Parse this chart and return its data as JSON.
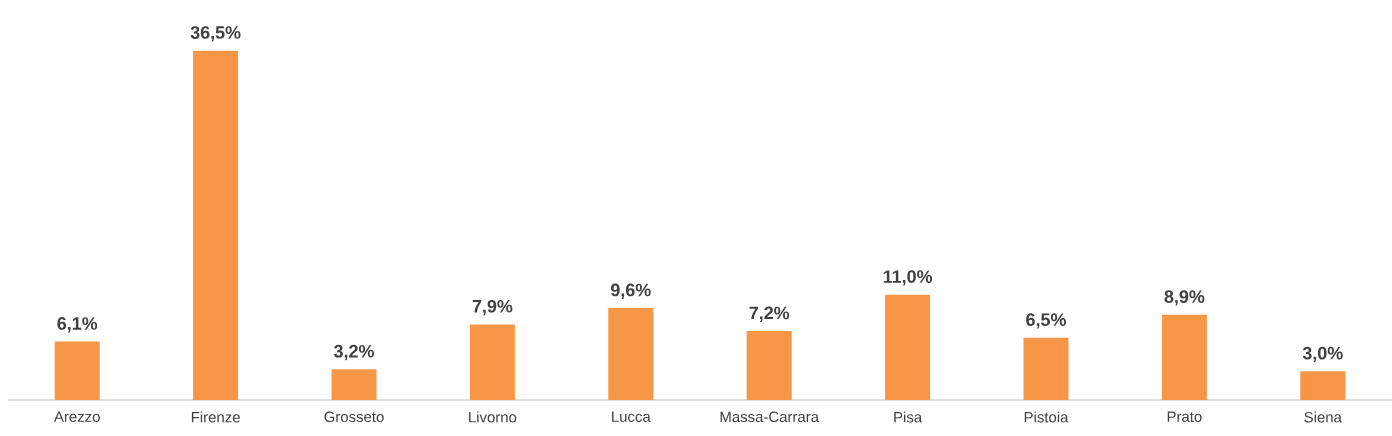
{
  "chart_data": {
    "type": "bar",
    "categories": [
      "Arezzo",
      "Firenze",
      "Grosseto",
      "Livorno",
      "Lucca",
      "Massa-Carrara",
      "Pisa",
      "Pistoia",
      "Prato",
      "Siena"
    ],
    "values": [
      6.1,
      36.5,
      3.2,
      7.9,
      9.6,
      7.2,
      11.0,
      6.5,
      8.9,
      3.0
    ],
    "value_labels": [
      "6,1%",
      "36,5%",
      "3,2%",
      "7,9%",
      "9,6%",
      "7,2%",
      "11,0%",
      "6,5%",
      "8,9%",
      "3,0%"
    ],
    "color": "#f79646"
  }
}
